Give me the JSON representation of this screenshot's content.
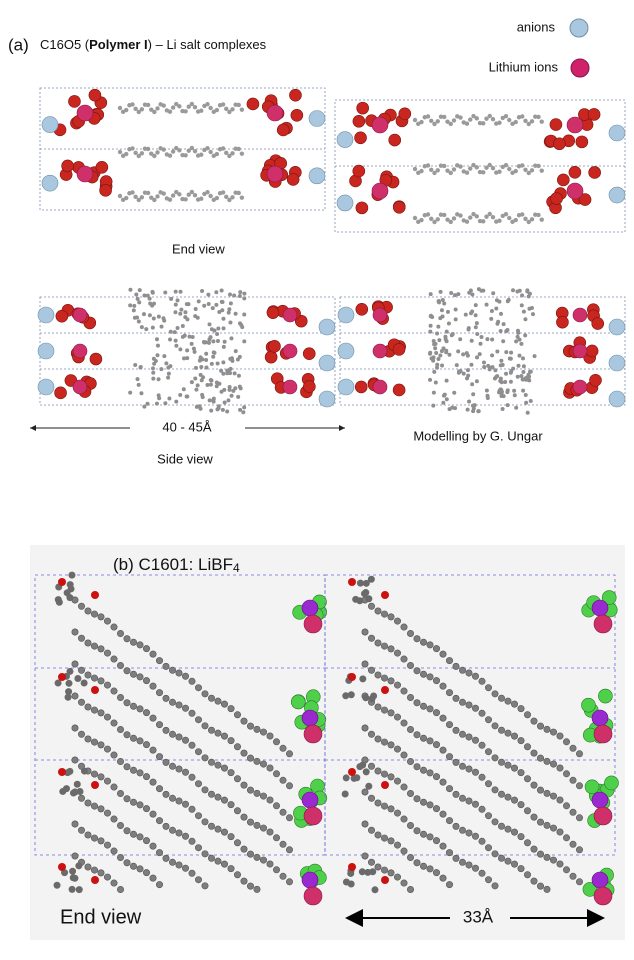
{
  "panel_a": {
    "label": "(a)",
    "title_parts": [
      "C16O5 (",
      "Polymer I",
      ") – Li salt complexes"
    ],
    "legend": [
      {
        "label": "anions"
      },
      {
        "label": "Lithium ions"
      }
    ],
    "end_view_caption": "End view",
    "dimension": "40 - 45Å",
    "side_view_caption": "Side view",
    "credit": "Modelling by G. Ungar"
  },
  "panel_b": {
    "title": "(b) C1601: LiBF",
    "title_subscript": "4",
    "caption": "End view",
    "dimension": "33Å"
  }
}
